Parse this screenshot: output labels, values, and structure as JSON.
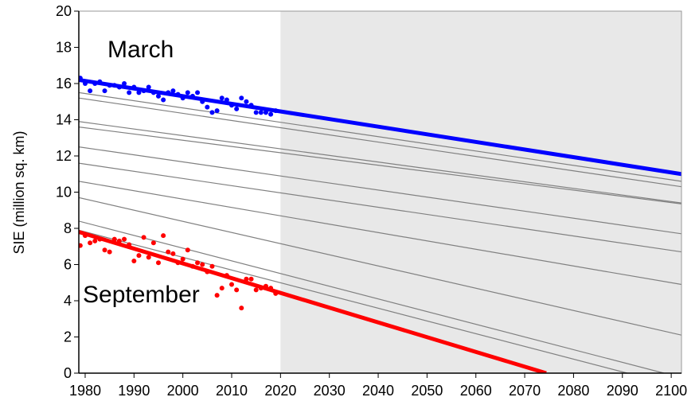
{
  "chart_data": {
    "type": "scatter",
    "y_label": "SIE (million sq. km)",
    "annotations": [
      "March",
      "September"
    ],
    "xlim": [
      1978.7,
      2102.1
    ],
    "ylim": [
      0,
      20
    ],
    "xticks": [
      1980,
      1990,
      2000,
      2010,
      2020,
      2030,
      2040,
      2050,
      2060,
      2070,
      2080,
      2090,
      2100
    ],
    "yticks": [
      0,
      2,
      4,
      6,
      8,
      10,
      12,
      14,
      16,
      18,
      20
    ],
    "shade_from": 2020,
    "shade_color": "#e8e8e8",
    "series": [
      {
        "color": "#0000ff",
        "x": [
          1979,
          1980,
          1981,
          1982,
          1983,
          1984,
          1985,
          1986,
          1987,
          1988,
          1989,
          1990,
          1991,
          1992,
          1993,
          1994,
          1995,
          1996,
          1997,
          1998,
          1999,
          2000,
          2001,
          2002,
          2003,
          2004,
          2005,
          2006,
          2007,
          2008,
          2009,
          2010,
          2011,
          2012,
          2013,
          2014,
          2015,
          2016,
          2017,
          2018,
          2019
        ],
        "values": [
          16.3,
          16.0,
          15.6,
          16.0,
          16.1,
          15.6,
          15.9,
          15.9,
          15.8,
          16.0,
          15.5,
          15.8,
          15.5,
          15.6,
          15.8,
          15.5,
          15.3,
          15.1,
          15.5,
          15.6,
          15.4,
          15.2,
          15.5,
          15.3,
          15.5,
          15.0,
          14.7,
          14.4,
          14.5,
          15.2,
          15.1,
          14.8,
          14.6,
          15.2,
          15.0,
          14.8,
          14.4,
          14.4,
          14.4,
          14.3,
          14.5
        ]
      },
      {
        "color": "#ff0000",
        "x": [
          1979,
          1980,
          1981,
          1982,
          1983,
          1984,
          1985,
          1986,
          1987,
          1988,
          1989,
          1990,
          1991,
          1992,
          1993,
          1994,
          1995,
          1996,
          1997,
          1998,
          1999,
          2000,
          2001,
          2002,
          2003,
          2004,
          2005,
          2006,
          2007,
          2008,
          2009,
          2010,
          2011,
          2012,
          2013,
          2014,
          2015,
          2016,
          2017,
          2018,
          2019
        ],
        "values": [
          7.05,
          7.6,
          7.2,
          7.3,
          7.4,
          6.8,
          6.7,
          7.4,
          7.3,
          7.4,
          7.1,
          6.2,
          6.5,
          7.5,
          6.4,
          7.2,
          6.1,
          7.6,
          6.7,
          6.6,
          6.1,
          6.3,
          6.8,
          5.9,
          6.1,
          6.0,
          5.6,
          5.9,
          4.3,
          4.7,
          5.4,
          4.9,
          4.6,
          3.6,
          5.2,
          5.2,
          4.6,
          4.7,
          4.8,
          4.7,
          4.4
        ]
      }
    ],
    "trend_lines": [
      {
        "color": "#808080",
        "x": [
          1978.7,
          2102.1
        ],
        "values": [
          15.5,
          10.6
        ]
      },
      {
        "color": "#808080",
        "x": [
          1978.7,
          2102.1
        ],
        "values": [
          15.2,
          10.3
        ]
      },
      {
        "color": "#808080",
        "x": [
          1978.7,
          2102.1
        ],
        "values": [
          13.9,
          9.4
        ]
      },
      {
        "color": "#808080",
        "x": [
          1978.7,
          2102.1
        ],
        "values": [
          13.6,
          9.35
        ]
      },
      {
        "color": "#808080",
        "x": [
          1978.7,
          2102.1
        ],
        "values": [
          12.5,
          7.7
        ]
      },
      {
        "color": "#808080",
        "x": [
          1978.7,
          2102.1
        ],
        "values": [
          11.6,
          6.7
        ]
      },
      {
        "color": "#808080",
        "x": [
          1978.7,
          2102.1
        ],
        "values": [
          10.6,
          4.9
        ]
      },
      {
        "color": "#808080",
        "x": [
          1978.7,
          2102.1
        ],
        "values": [
          9.7,
          2.1
        ]
      },
      {
        "color": "#808080",
        "x": [
          1978.7,
          2098.5
        ],
        "values": [
          8.4,
          0
        ]
      },
      {
        "color": "#808080",
        "x": [
          1978.7,
          2091.0
        ],
        "values": [
          7.9,
          0
        ]
      },
      {
        "color": "#0000ff",
        "x": [
          1978.7,
          2102.1
        ],
        "values": [
          16.2,
          11.0
        ]
      },
      {
        "color": "#ff0000",
        "x": [
          1978.7,
          2074.4
        ],
        "values": [
          7.8,
          0
        ]
      }
    ]
  }
}
